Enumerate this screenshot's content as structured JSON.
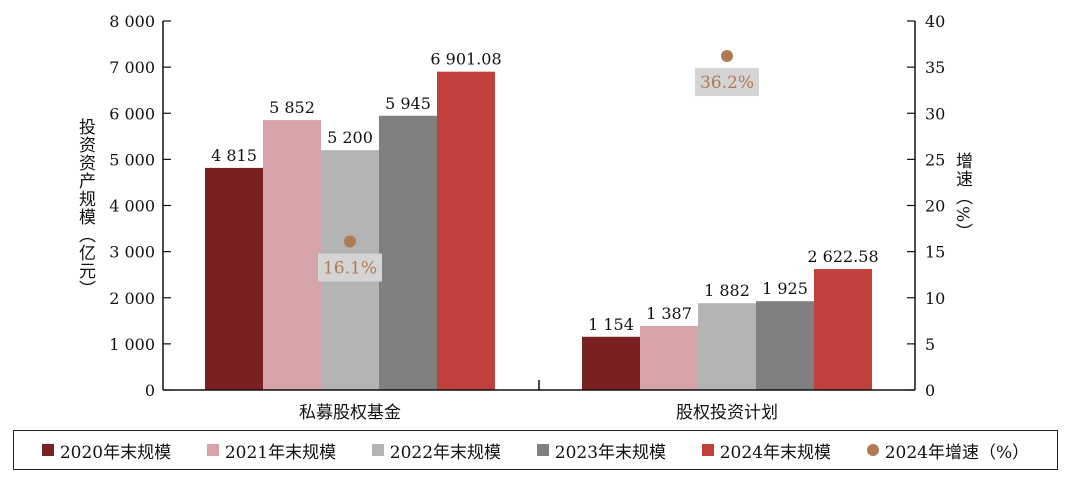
{
  "chart_data": {
    "type": "bar",
    "categories": [
      "私募股权基金",
      "股权投资计划"
    ],
    "series": [
      {
        "name": "2020年末规模",
        "values": [
          4815,
          1154
        ],
        "labels": [
          "4 815",
          "1 154"
        ],
        "color": "#7a1f22"
      },
      {
        "name": "2021年末规模",
        "values": [
          5852,
          1387
        ],
        "labels": [
          "5 852",
          "1 387"
        ],
        "color": "#d6a3a8"
      },
      {
        "name": "2022年末规模",
        "values": [
          5200,
          1882
        ],
        "labels": [
          "5 200",
          "1 882"
        ],
        "color": "#b3b3b3"
      },
      {
        "name": "2023年末规模",
        "values": [
          5945,
          1925
        ],
        "labels": [
          "5 945",
          "1 925"
        ],
        "color": "#808080"
      },
      {
        "name": "2024年末规模",
        "values": [
          6901.08,
          2622.58
        ],
        "labels": [
          "6 901.08",
          "2 622.58"
        ],
        "color": "#c0403c"
      }
    ],
    "growth": {
      "name": "2024年增速（%）",
      "values": [
        16.1,
        36.2
      ],
      "labels": [
        "16.1%",
        "36.2%"
      ],
      "color": "#b07a54"
    },
    "ylabel": "投资资产规模（亿元）",
    "ylabel_right": "增速（%）",
    "ylim": [
      0,
      8000
    ],
    "ylim_right": [
      0,
      40
    ],
    "yticks": [
      0,
      1000,
      2000,
      3000,
      4000,
      5000,
      6000,
      7000,
      8000
    ],
    "ytick_labels": [
      "0",
      "1 000",
      "2 000",
      "3 000",
      "4 000",
      "5 000",
      "6 000",
      "7 000",
      "8 000"
    ],
    "yticks_right": [
      0,
      5,
      10,
      15,
      20,
      25,
      30,
      35,
      40
    ],
    "ytick_labels_right": [
      "0",
      "5",
      "10",
      "15",
      "20",
      "25",
      "30",
      "35",
      "40"
    ],
    "legend": "bottom",
    "grid": false
  }
}
